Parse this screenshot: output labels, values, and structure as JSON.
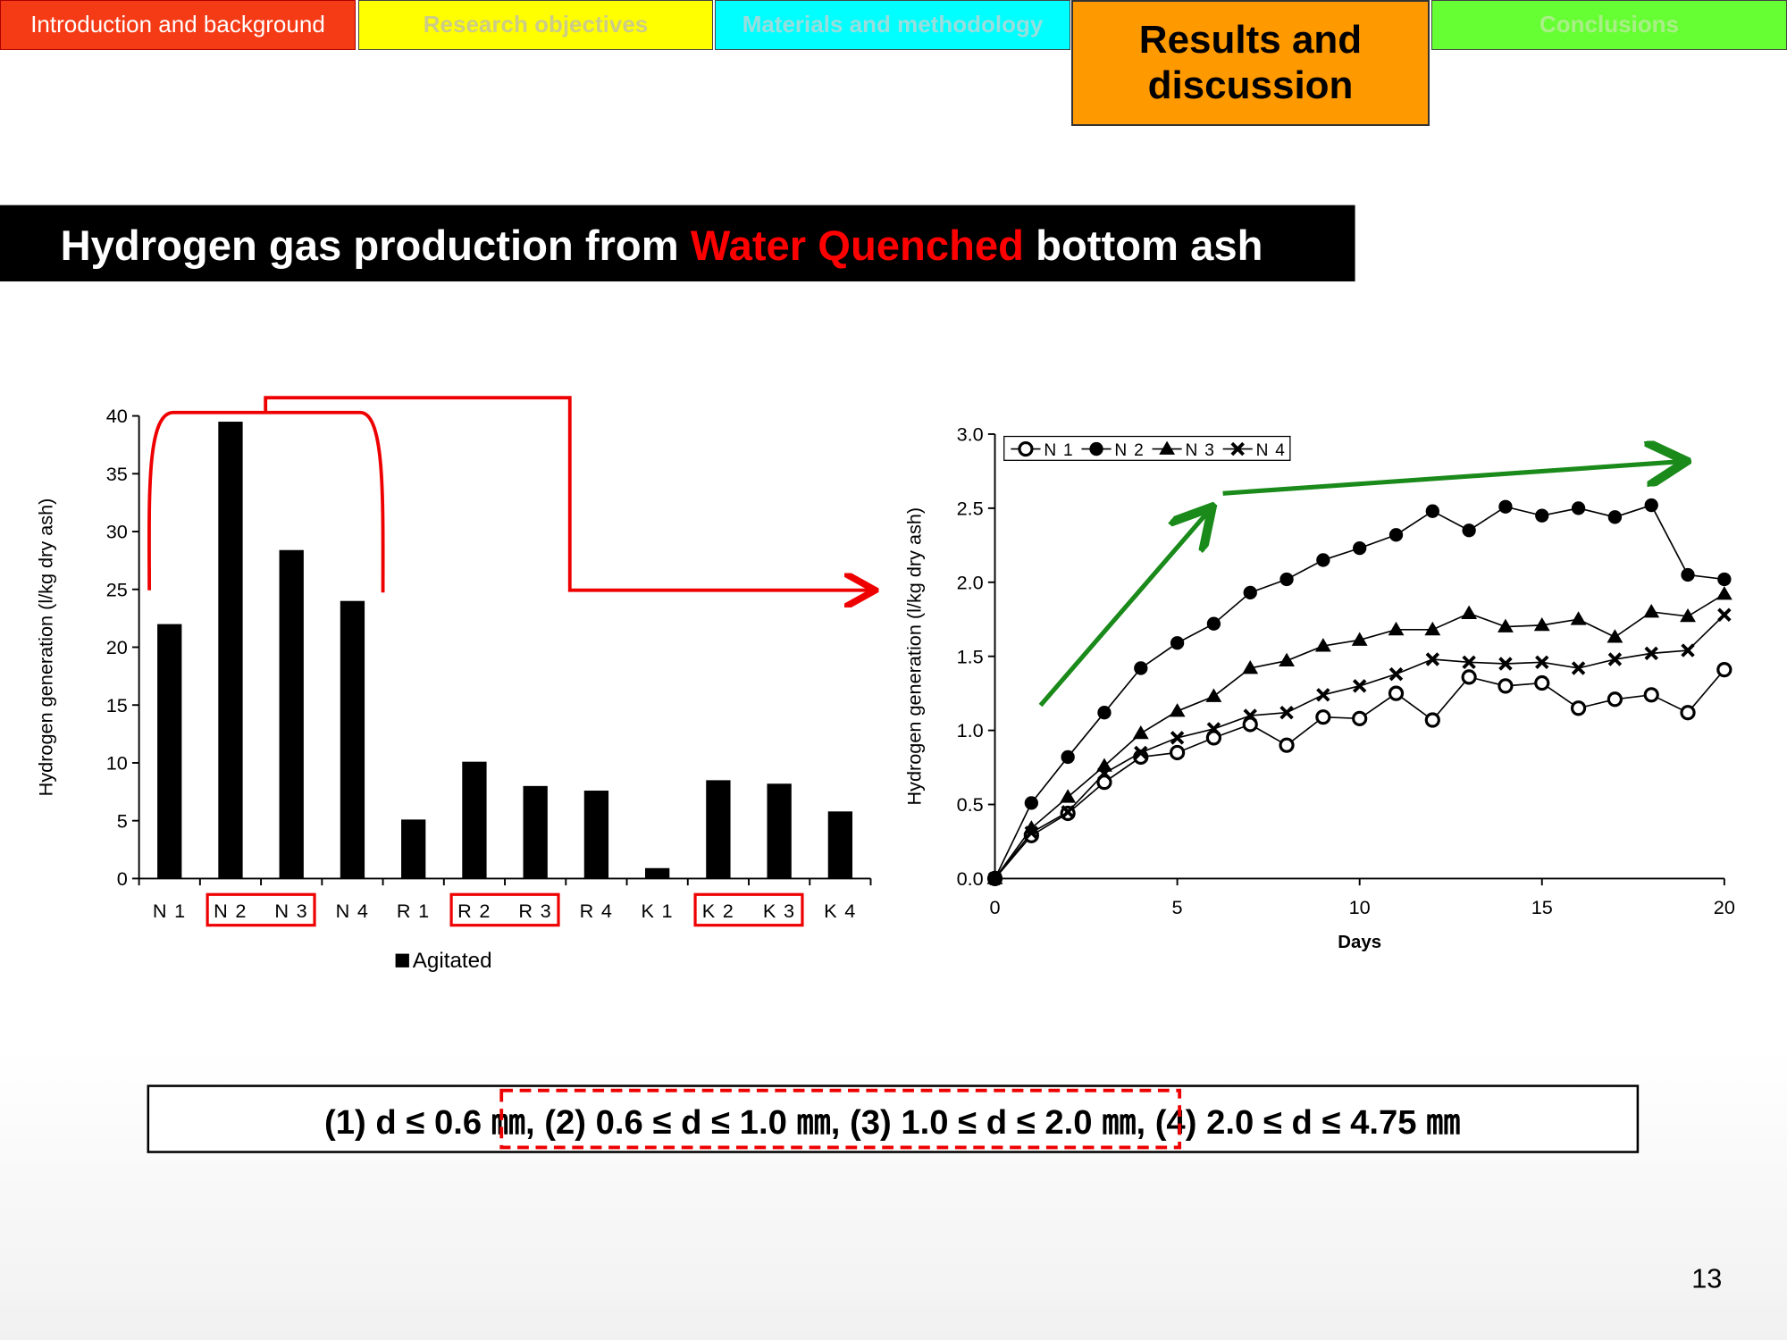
{
  "nav": {
    "tabs": [
      "Introduction and background",
      "Research objectives",
      "Materials and methodology",
      "Results and discussion",
      "Conclusions"
    ]
  },
  "title": {
    "parts": [
      "Hydrogen gas production from ",
      "Water Quenched",
      " bottom ash"
    ]
  },
  "chart_data": [
    {
      "type": "bar",
      "y_label": "Hydrogen generation  (l/kg dry ash)",
      "categories": [
        "N 1",
        "N 2",
        "N 3",
        "N 4",
        "R 1",
        "R 2",
        "R 3",
        "R 4",
        "K 1",
        "K 2",
        "K 3",
        "K 4"
      ],
      "series": [
        {
          "name": "Agitated",
          "color": "#000000",
          "values": [
            22,
            39.5,
            28.4,
            24,
            5.1,
            10.1,
            8,
            7.6,
            0.9,
            8.5,
            8.2,
            5.8
          ]
        }
      ],
      "ylim": [
        0,
        40
      ],
      "yticks": [
        0,
        5,
        10,
        15,
        20,
        25,
        30,
        35,
        40
      ],
      "legend": "bottom"
    },
    {
      "type": "line",
      "x_label": "Days",
      "y_label": "Hydrogen  generation  (l/kg dry ash)",
      "x": [
        0,
        1,
        2,
        3,
        4,
        5,
        6,
        7,
        8,
        9,
        10,
        11,
        12,
        13,
        14,
        15,
        16,
        17,
        18,
        19,
        20
      ],
      "series": [
        {
          "name": "N 1",
          "color": "#000000",
          "marker": "open-circle",
          "values": [
            0,
            0.29,
            0.44,
            0.65,
            0.82,
            0.85,
            0.95,
            1.04,
            0.9,
            1.09,
            1.08,
            1.25,
            1.07,
            1.36,
            1.3,
            1.32,
            1.15,
            1.21,
            1.24,
            1.12,
            1.41
          ]
        },
        {
          "name": "N 2",
          "color": "#000000",
          "marker": "circle",
          "values": [
            0,
            0.51,
            0.82,
            1.12,
            1.42,
            1.59,
            1.72,
            1.93,
            2.02,
            2.15,
            2.23,
            2.32,
            2.48,
            2.35,
            2.51,
            2.45,
            2.5,
            2.44,
            2.52,
            2.05,
            2.02
          ]
        },
        {
          "name": "N 3",
          "color": "#000000",
          "marker": "triangle",
          "values": [
            0,
            0.34,
            0.55,
            0.76,
            0.98,
            1.13,
            1.23,
            1.42,
            1.47,
            1.57,
            1.61,
            1.68,
            1.68,
            1.79,
            1.7,
            1.71,
            1.75,
            1.63,
            1.8,
            1.77,
            1.92
          ]
        },
        {
          "name": "N 4",
          "color": "#000000",
          "marker": "x",
          "values": [
            0,
            0.31,
            0.45,
            0.71,
            0.85,
            0.95,
            1.01,
            1.1,
            1.12,
            1.24,
            1.3,
            1.38,
            1.48,
            1.46,
            1.45,
            1.46,
            1.42,
            1.48,
            1.52,
            1.54,
            1.78
          ]
        }
      ],
      "xlim": [
        0,
        20
      ],
      "xticks": [
        0,
        5,
        10,
        15,
        20
      ],
      "ylim": [
        0,
        3
      ],
      "yticks": [
        {
          "value": 0,
          "label": "0.0"
        },
        0.5,
        {
          "value": 1,
          "label": "1.0"
        },
        1.5,
        {
          "value": 2,
          "label": "2.0"
        },
        2.5,
        {
          "value": 3,
          "label": "3.0"
        }
      ],
      "legend": "top-left"
    }
  ],
  "footnote": "(1) d ≤ 0.6 ㎜, (2) 0.6 ≤ d ≤ 1.0 ㎜, (3) 1.0 ≤ d ≤ 2.0 ㎜, (4) 2.0 ≤ d ≤ 4.75 ㎜",
  "page_number": 13
}
